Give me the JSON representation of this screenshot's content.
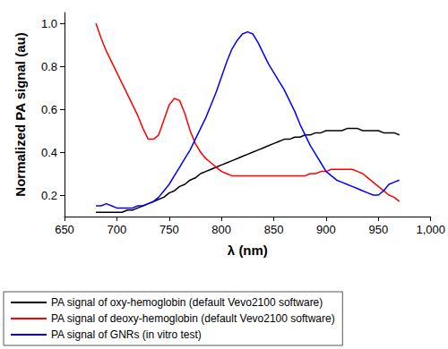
{
  "chart_data": {
    "type": "line",
    "x_label": "λ (nm)",
    "y_label": "Normalized PA signal (au)",
    "x": [
      680,
      685,
      690,
      695,
      700,
      705,
      710,
      715,
      720,
      725,
      730,
      735,
      740,
      745,
      750,
      755,
      760,
      765,
      770,
      775,
      780,
      785,
      790,
      795,
      800,
      805,
      810,
      815,
      820,
      825,
      830,
      835,
      840,
      845,
      850,
      855,
      860,
      865,
      870,
      875,
      880,
      885,
      890,
      895,
      900,
      905,
      910,
      915,
      920,
      925,
      930,
      935,
      940,
      945,
      950,
      955,
      960,
      965,
      970
    ],
    "series": [
      {
        "name": "PA signal of oxy-hemoglobin (default Vevo2100 software)",
        "color": "#000000",
        "values": [
          0.12,
          0.12,
          0.12,
          0.12,
          0.12,
          0.12,
          0.13,
          0.13,
          0.14,
          0.15,
          0.16,
          0.17,
          0.18,
          0.19,
          0.21,
          0.22,
          0.24,
          0.25,
          0.27,
          0.28,
          0.3,
          0.31,
          0.32,
          0.33,
          0.34,
          0.35,
          0.36,
          0.37,
          0.38,
          0.39,
          0.4,
          0.41,
          0.42,
          0.43,
          0.44,
          0.45,
          0.46,
          0.46,
          0.47,
          0.47,
          0.48,
          0.48,
          0.49,
          0.49,
          0.5,
          0.5,
          0.5,
          0.5,
          0.51,
          0.51,
          0.51,
          0.5,
          0.5,
          0.5,
          0.5,
          0.49,
          0.49,
          0.49,
          0.48
        ]
      },
      {
        "name": "PA signal of deoxy-hemoglobin (default Vevo2100 software)",
        "color": "#ff0000",
        "values": [
          1.0,
          0.93,
          0.87,
          0.82,
          0.77,
          0.72,
          0.67,
          0.62,
          0.57,
          0.51,
          0.46,
          0.46,
          0.48,
          0.55,
          0.62,
          0.65,
          0.64,
          0.58,
          0.5,
          0.44,
          0.4,
          0.37,
          0.35,
          0.33,
          0.31,
          0.3,
          0.29,
          0.29,
          0.29,
          0.29,
          0.29,
          0.29,
          0.29,
          0.29,
          0.29,
          0.29,
          0.29,
          0.29,
          0.29,
          0.29,
          0.29,
          0.3,
          0.3,
          0.31,
          0.31,
          0.32,
          0.32,
          0.32,
          0.32,
          0.32,
          0.31,
          0.3,
          0.28,
          0.26,
          0.24,
          0.22,
          0.2,
          0.19,
          0.17
        ]
      },
      {
        "name": "PA signal of GNRs (in vitro test)",
        "color": "#0000ff",
        "values": [
          0.15,
          0.15,
          0.16,
          0.15,
          0.14,
          0.14,
          0.14,
          0.14,
          0.15,
          0.15,
          0.16,
          0.17,
          0.19,
          0.22,
          0.25,
          0.29,
          0.33,
          0.37,
          0.41,
          0.46,
          0.51,
          0.56,
          0.62,
          0.68,
          0.75,
          0.82,
          0.88,
          0.92,
          0.95,
          0.96,
          0.95,
          0.91,
          0.86,
          0.81,
          0.77,
          0.73,
          0.69,
          0.64,
          0.59,
          0.53,
          0.48,
          0.43,
          0.39,
          0.35,
          0.31,
          0.29,
          0.27,
          0.26,
          0.25,
          0.24,
          0.23,
          0.22,
          0.21,
          0.2,
          0.2,
          0.22,
          0.25,
          0.26,
          0.27
        ]
      }
    ],
    "xlim": [
      650,
      1000
    ],
    "xticks": [
      650,
      700,
      750,
      800,
      850,
      900,
      950,
      {
        "value": 1000,
        "label": "1,000"
      }
    ],
    "ylim": [
      0.1,
      1.05
    ],
    "yticks": [
      0.2,
      0.4,
      0.6,
      0.8,
      {
        "value": 1,
        "label": "1.0"
      }
    ],
    "grid": false,
    "legend": "bottom",
    "line_style": "solid"
  }
}
